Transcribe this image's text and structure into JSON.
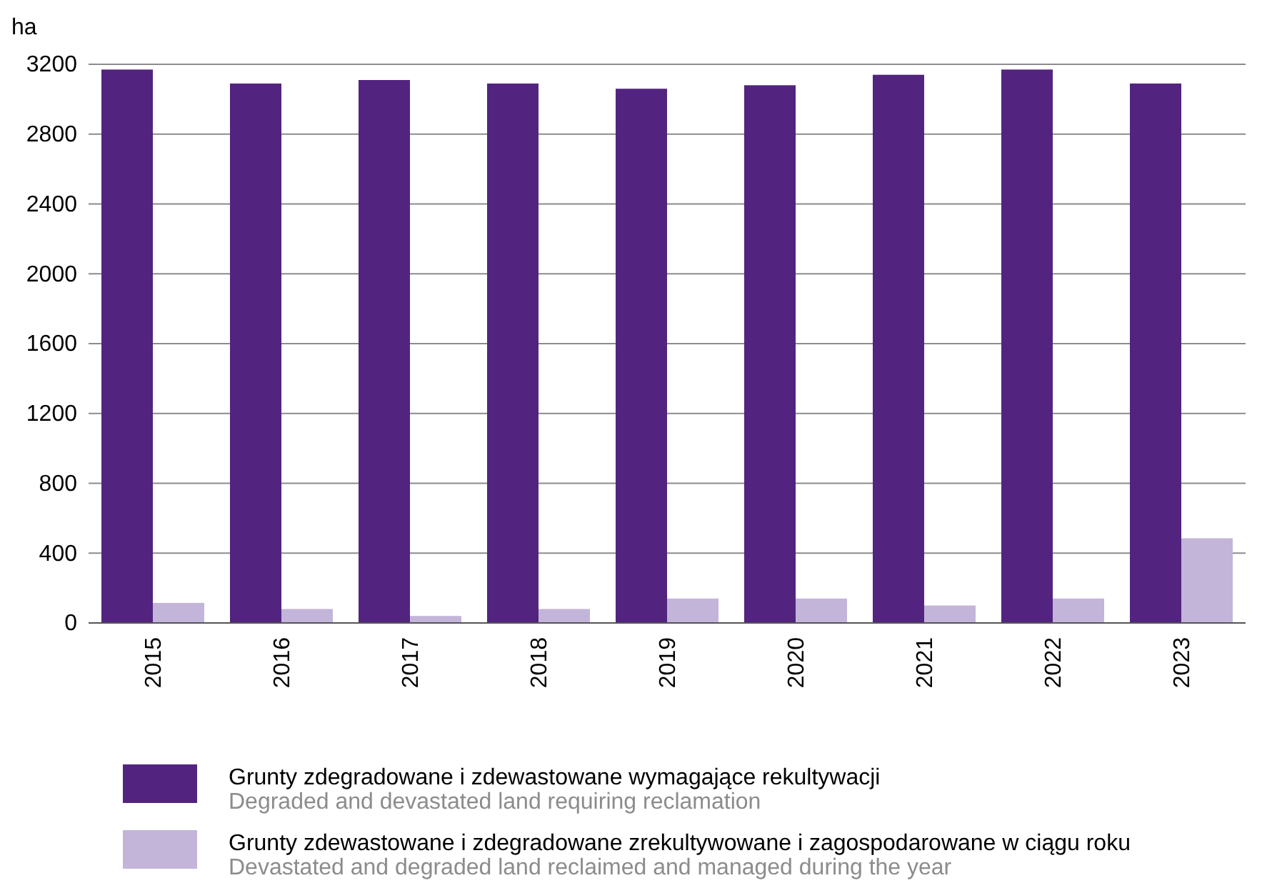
{
  "chart_data": {
    "type": "bar",
    "ylabel": "ha",
    "categories": [
      "2015",
      "2016",
      "2017",
      "2018",
      "2019",
      "2020",
      "2021",
      "2022",
      "2023"
    ],
    "series": [
      {
        "name": "Grunty zdegradowane i zdewastowane wymagające rekultywacji\nDegraded and devastated land requiring reclamation",
        "color": "#52247f",
        "values": [
          3170,
          3090,
          3110,
          3090,
          3060,
          3080,
          3140,
          3170,
          3090
        ]
      },
      {
        "name": "Grunty zdewastowane i zdegradowane zrekultywowane i zagospodarowane w ciągu roku\nDevastated and degraded land reclaimed and managed during the year",
        "color": "#c3b4d9",
        "values": [
          115,
          80,
          40,
          80,
          140,
          140,
          100,
          140,
          485
        ]
      }
    ],
    "ylim": [
      0,
      3200
    ],
    "yticks": [
      0,
      400,
      800,
      1200,
      1600,
      2000,
      2400,
      2800,
      3200
    ],
    "grid": "y",
    "legend": "bottom"
  }
}
